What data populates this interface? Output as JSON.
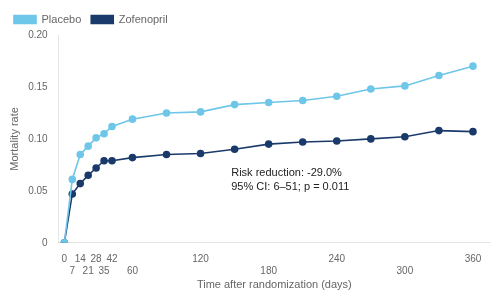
{
  "chart_data": {
    "type": "line",
    "xlabel": "Time after randomization (days)",
    "ylabel": "Mortality rate",
    "annotation": "Risk reduction: -29.0%\n95% CI: 6–51; p = 0.011",
    "x": [
      0,
      7,
      14,
      21,
      28,
      35,
      42,
      60,
      90,
      120,
      150,
      180,
      210,
      240,
      270,
      300,
      330,
      360
    ],
    "series": [
      {
        "name": "Placebo",
        "color": "#6ec6e8",
        "marker": "circle",
        "values": [
          0,
          0.061,
          0.085,
          0.093,
          0.101,
          0.105,
          0.112,
          0.119,
          0.125,
          0.126,
          0.133,
          0.135,
          0.137,
          0.141,
          0.148,
          0.151,
          0.161,
          0.17
        ]
      },
      {
        "name": "Zofenopril",
        "color": "#1a3a6b",
        "marker": "circle",
        "values": [
          0,
          0.047,
          0.057,
          0.065,
          0.072,
          0.079,
          0.079,
          0.082,
          0.085,
          0.086,
          0.09,
          0.095,
          0.097,
          0.098,
          0.1,
          0.102,
          0.108,
          0.107
        ]
      }
    ],
    "xlim": [
      -5,
      375
    ],
    "xticks": [
      0,
      7,
      14,
      21,
      28,
      35,
      42,
      60,
      120,
      180,
      240,
      300,
      360
    ],
    "ylim": [
      0,
      0.2
    ],
    "yticks": [
      0,
      0.05,
      {
        "value": 0.1,
        "label": "0.10"
      },
      0.15,
      {
        "value": 0.2,
        "label": "0.20"
      }
    ],
    "grid": false,
    "legend": "upper left"
  }
}
